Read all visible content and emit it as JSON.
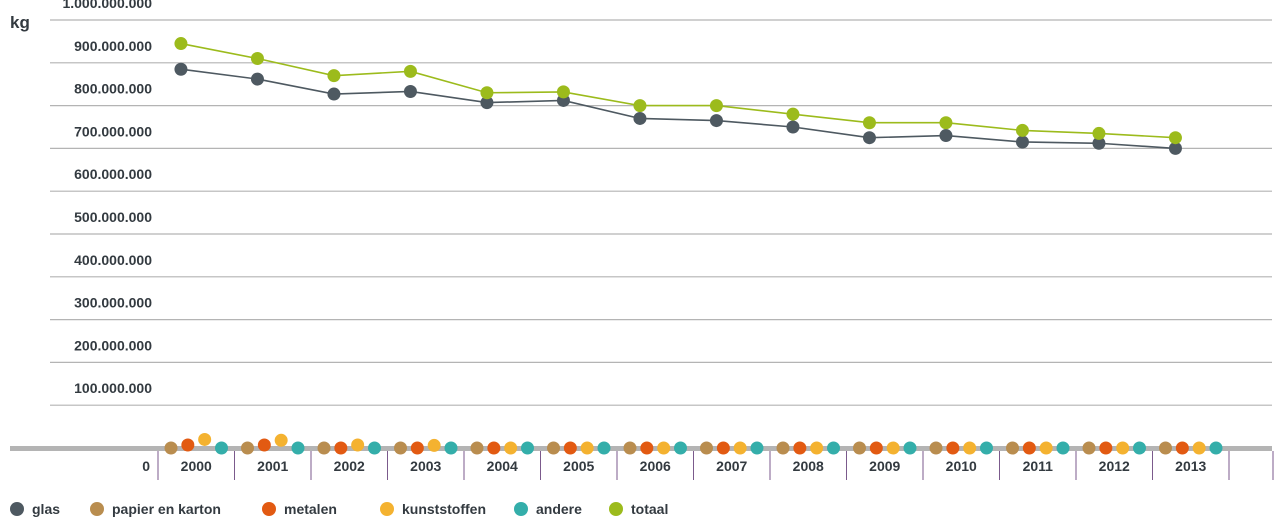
{
  "chart_data": {
    "type": "line",
    "unit_label": "kg",
    "zero_label": "0",
    "x": [
      "2000",
      "2001",
      "2002",
      "2003",
      "2004",
      "2005",
      "2006",
      "2007",
      "2008",
      "2009",
      "2010",
      "2011",
      "2012",
      "2013"
    ],
    "yticks": [
      100000000,
      200000000,
      300000000,
      400000000,
      500000000,
      600000000,
      700000000,
      800000000,
      900000000,
      1000000000
    ],
    "ytick_labels": [
      "100.000.000",
      "200.000.000",
      "300.000.000",
      "400.000.000",
      "500.000.000",
      "600.000.000",
      "700.000.000",
      "800.000.000",
      "900.000.000",
      "1.000.000.000"
    ],
    "ylim": [
      0,
      1000000000
    ],
    "grid": true,
    "legend_position": "bottom-left",
    "series": [
      {
        "name": "glas",
        "color": "#4e5961",
        "style": "line",
        "values": [
          885000000,
          862000000,
          827000000,
          833000000,
          807000000,
          812000000,
          770000000,
          765000000,
          750000000,
          725000000,
          730000000,
          715000000,
          712000000,
          700000000
        ]
      },
      {
        "name": "papier en karton",
        "color": "#b98d4f",
        "style": "points",
        "values": [
          0,
          0,
          0,
          0,
          0,
          0,
          0,
          0,
          0,
          0,
          0,
          0,
          0,
          0
        ]
      },
      {
        "name": "metalen",
        "color": "#e25a12",
        "style": "points",
        "values": [
          7000000,
          7000000,
          0,
          0,
          0,
          0,
          0,
          0,
          0,
          0,
          0,
          0,
          0,
          0
        ]
      },
      {
        "name": "kunststoffen",
        "color": "#f4b230",
        "style": "points",
        "values": [
          20000000,
          18000000,
          7000000,
          6000000,
          0,
          0,
          0,
          0,
          0,
          0,
          0,
          0,
          0,
          0
        ]
      },
      {
        "name": "andere",
        "color": "#34aeaa",
        "style": "points",
        "values": [
          0,
          0,
          0,
          0,
          0,
          0,
          0,
          0,
          0,
          0,
          0,
          0,
          0,
          0
        ]
      },
      {
        "name": "totaal",
        "color": "#9cbb1c",
        "style": "line",
        "values": [
          945000000,
          910000000,
          870000000,
          880000000,
          830000000,
          832000000,
          800000000,
          800000000,
          780000000,
          760000000,
          760000000,
          742000000,
          735000000,
          725000000
        ]
      }
    ]
  }
}
